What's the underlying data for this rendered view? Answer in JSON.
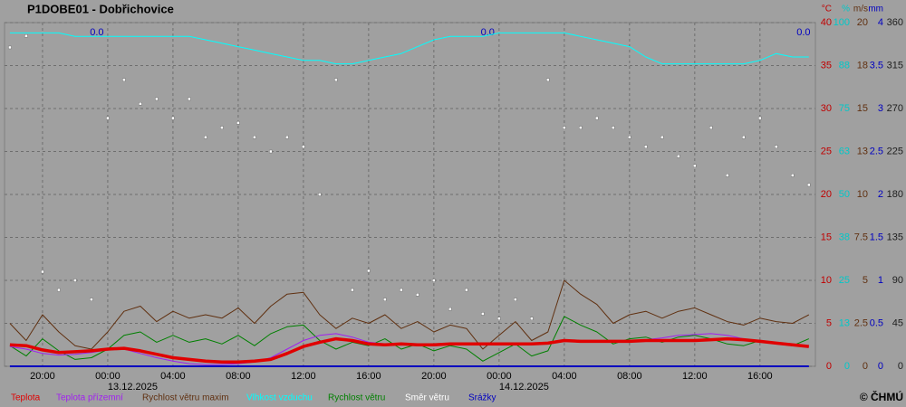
{
  "chart_data": {
    "type": "meteogram",
    "title": "P1DOBE01 - Dobřichovice",
    "copyright": "© ČHMÚ",
    "xlim": [
      -6.33,
      43.4
    ],
    "xticks": [
      {
        "value": -4,
        "label": "20:00"
      },
      {
        "value": 0,
        "label": "00:00"
      },
      {
        "value": 4,
        "label": "04:00"
      },
      {
        "value": 8,
        "label": "08:00"
      },
      {
        "value": 12,
        "label": "12:00"
      },
      {
        "value": 16,
        "label": "16:00"
      },
      {
        "value": 20,
        "label": "20:00"
      },
      {
        "value": 24,
        "label": "00:00"
      },
      {
        "value": 28,
        "label": "04:00"
      },
      {
        "value": 32,
        "label": "08:00"
      },
      {
        "value": 36,
        "label": "12:00"
      },
      {
        "value": 40,
        "label": "16:00"
      }
    ],
    "date_labels": [
      {
        "value": 0,
        "label": "13.12.2025"
      },
      {
        "value": 24,
        "label": "14.12.2025"
      }
    ],
    "precip_labels": [
      {
        "value": -0.67,
        "label": "0.0"
      },
      {
        "value": 23.3,
        "label": "0.0"
      },
      {
        "value": 42.67,
        "label": "0.0"
      }
    ],
    "grid": true,
    "axes": {
      "temp": {
        "label": "°C",
        "lim": [
          0,
          40
        ],
        "ticks": [
          0,
          5,
          10,
          15,
          20,
          25,
          30,
          35,
          40
        ],
        "color": "#c00000"
      },
      "hum": {
        "label": "%",
        "lim": [
          0,
          100
        ],
        "ticks": [
          0,
          {
            "value": 12.5,
            "label": "13"
          },
          25,
          {
            "value": 37.5,
            "label": "38"
          },
          50,
          {
            "value": 62.5,
            "label": "63"
          },
          75,
          {
            "value": 87.5,
            "label": "88"
          },
          100
        ],
        "color": "#00c8c8"
      },
      "wind": {
        "label": "m/s",
        "lim": [
          0,
          20
        ],
        "ticks": [
          0,
          2.5,
          5,
          7.5,
          10,
          {
            "value": 12.5,
            "label": "13"
          },
          15,
          {
            "value": 17.5,
            "label": "18"
          },
          20
        ],
        "color": "#603010"
      },
      "rain": {
        "label": "mm",
        "lim": [
          0,
          4
        ],
        "ticks": [
          0,
          0.5,
          1,
          1.5,
          2,
          2.5,
          3,
          3.5,
          4
        ],
        "color": "#0000c0"
      },
      "dir": {
        "lim": [
          0,
          360
        ],
        "ticks": [
          0,
          45,
          90,
          135,
          180,
          225,
          270,
          315,
          360
        ],
        "color": "#202020"
      }
    },
    "x": [
      -6,
      -5,
      -4,
      -3,
      -2,
      -1,
      0,
      1,
      2,
      3,
      4,
      5,
      6,
      7,
      8,
      9,
      10,
      11,
      12,
      13,
      14,
      15,
      16,
      17,
      18,
      19,
      20,
      21,
      22,
      23,
      24,
      25,
      26,
      27,
      28,
      29,
      30,
      31,
      32,
      33,
      34,
      35,
      36,
      37,
      38,
      39,
      40,
      41,
      42,
      43
    ],
    "series": [
      {
        "name": "Srážky",
        "color": "#0000c0",
        "axis": "rain",
        "style": "line",
        "width": 2,
        "values": [
          0,
          0,
          0,
          0,
          0,
          0,
          0,
          0,
          0,
          0,
          0,
          0,
          0,
          0,
          0,
          0,
          0,
          0,
          0,
          0,
          0,
          0,
          0,
          0,
          0,
          0,
          0,
          0,
          0,
          0,
          0,
          0,
          0,
          0,
          0,
          0,
          0,
          0,
          0,
          0,
          0,
          0,
          0,
          0,
          0,
          0,
          0,
          0,
          0,
          0
        ]
      },
      {
        "name": "Vlhkost vzduchu",
        "color": "#00ffff",
        "axis": "hum",
        "style": "line",
        "width": 1,
        "values": [
          97,
          97,
          97,
          97,
          96,
          96,
          96,
          96,
          96,
          96,
          96,
          96,
          95,
          94,
          93,
          92,
          91,
          90,
          89,
          89,
          88,
          88,
          89,
          90,
          91,
          93,
          95,
          96,
          96,
          96,
          97,
          97,
          97,
          97,
          97,
          96,
          95,
          94,
          93,
          90,
          88,
          88,
          88,
          88,
          88,
          88,
          89,
          91,
          90,
          90
        ]
      },
      {
        "name": "Rychlost větru maxim",
        "color": "#603010",
        "axis": "wind",
        "style": "line",
        "width": 1,
        "values": [
          2.5,
          1.5,
          3.0,
          2.0,
          1.2,
          1.0,
          2.0,
          3.2,
          3.5,
          2.6,
          3.2,
          2.8,
          3.0,
          2.8,
          3.4,
          2.5,
          3.5,
          4.2,
          4.3,
          3.0,
          2.2,
          2.8,
          2.5,
          3.0,
          2.2,
          2.6,
          2.0,
          2.4,
          2.2,
          1.0,
          1.8,
          2.6,
          1.5,
          2.0,
          5.0,
          4.2,
          3.6,
          2.5,
          3.0,
          3.2,
          2.8,
          3.2,
          3.4,
          3.0,
          2.6,
          2.4,
          2.8,
          2.6,
          2.5,
          3.0
        ]
      },
      {
        "name": "Rychlost větru",
        "color": "#008000",
        "axis": "wind",
        "style": "line",
        "width": 1,
        "values": [
          1.2,
          0.6,
          1.6,
          0.9,
          0.4,
          0.5,
          1.0,
          1.8,
          2.0,
          1.4,
          1.8,
          1.4,
          1.6,
          1.3,
          1.8,
          1.2,
          1.9,
          2.3,
          2.4,
          1.5,
          1.0,
          1.4,
          1.2,
          1.6,
          1.0,
          1.3,
          0.9,
          1.2,
          1.0,
          0.3,
          0.8,
          1.3,
          0.6,
          0.9,
          2.9,
          2.4,
          2.0,
          1.3,
          1.6,
          1.7,
          1.4,
          1.7,
          1.8,
          1.6,
          1.3,
          1.2,
          1.5,
          1.3,
          1.2,
          1.6
        ]
      },
      {
        "name": "Teplota přízemní",
        "color": "#a020f0",
        "axis": "temp",
        "style": "line",
        "width": 1,
        "values": [
          2.3,
          2.0,
          1.5,
          1.3,
          1.4,
          1.6,
          1.9,
          2.0,
          1.5,
          1.0,
          0.6,
          0.3,
          0.2,
          0.2,
          0.3,
          0.5,
          1.0,
          2.0,
          3.0,
          3.6,
          3.8,
          3.4,
          2.8,
          2.6,
          2.6,
          2.5,
          2.5,
          2.5,
          2.5,
          2.6,
          2.6,
          2.6,
          2.6,
          2.7,
          3.0,
          2.9,
          2.9,
          2.9,
          3.0,
          3.1,
          3.3,
          3.6,
          3.7,
          3.8,
          3.6,
          3.2,
          2.9,
          2.6,
          2.4,
          2.3
        ]
      },
      {
        "name": "Teplota",
        "color": "#e00000",
        "axis": "temp",
        "style": "line",
        "width": 3.5,
        "values": [
          2.5,
          2.4,
          1.9,
          1.6,
          1.7,
          1.8,
          2.0,
          2.1,
          1.8,
          1.4,
          1.0,
          0.8,
          0.6,
          0.5,
          0.5,
          0.6,
          0.8,
          1.5,
          2.3,
          2.8,
          3.2,
          3.0,
          2.6,
          2.5,
          2.6,
          2.5,
          2.5,
          2.6,
          2.6,
          2.6,
          2.6,
          2.6,
          2.6,
          2.7,
          3.0,
          2.9,
          2.9,
          2.9,
          2.9,
          3.0,
          3.0,
          3.0,
          3.0,
          3.1,
          3.2,
          3.1,
          2.9,
          2.7,
          2.5,
          2.3
        ]
      },
      {
        "name": "Směr větru",
        "color": "#ffffff",
        "axis": "dir",
        "style": "dots",
        "values": [
          334,
          346,
          99,
          80,
          90,
          70,
          260,
          300,
          275,
          280,
          260,
          280,
          240,
          250,
          255,
          240,
          225,
          240,
          230,
          180,
          300,
          80,
          100,
          70,
          80,
          75,
          90,
          60,
          80,
          55,
          50,
          70,
          50,
          300,
          250,
          250,
          260,
          250,
          240,
          230,
          240,
          220,
          210,
          250,
          200,
          240,
          260,
          230,
          200,
          190
        ]
      }
    ],
    "legend_order": [
      5,
      4,
      2,
      1,
      3,
      6,
      0
    ]
  }
}
